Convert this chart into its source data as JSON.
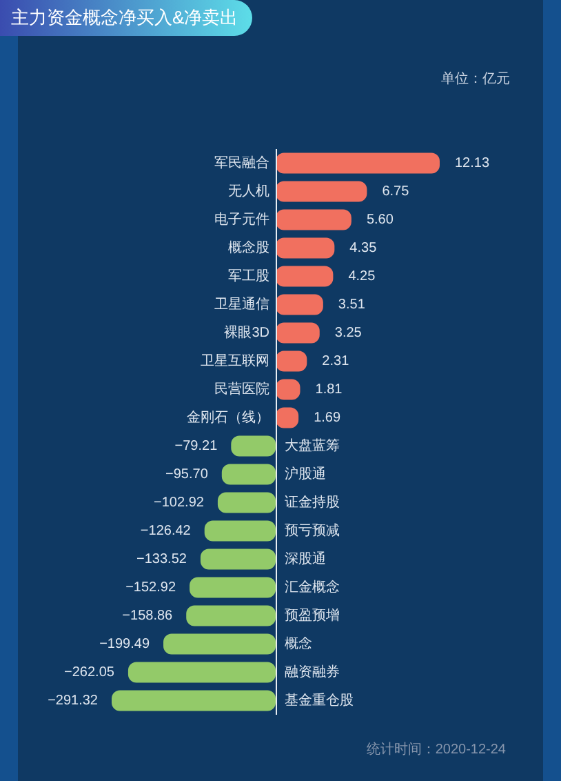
{
  "chart_data": [
    {
      "type": "bar",
      "orientation": "horizontal",
      "title": "主力资金概念净买入&净卖出",
      "annotations": [
        "单位：亿元"
      ],
      "categories": [
        "军民融合",
        "无人机",
        "电子元件",
        "概念股",
        "军工股",
        "卫星通信",
        "裸眼3D",
        "卫星互联网",
        "民营医院",
        "金刚石（线）"
      ],
      "series": [
        {
          "color": "#f1705f",
          "values": [
            12.13,
            6.75,
            5.6,
            4.35,
            4.25,
            3.51,
            3.25,
            2.31,
            1.81,
            1.69
          ],
          "value_labels": [
            "12.13",
            "6.75",
            "5.60",
            "4.35",
            "4.25",
            "3.51",
            "3.25",
            "2.31",
            "1.81",
            "1.69"
          ]
        }
      ],
      "tick_labels": "y"
    },
    {
      "type": "bar",
      "orientation": "horizontal",
      "annotations": [
        "统计时间：2020-12-24"
      ],
      "categories": [
        "大盘蓝筹",
        "沪股通",
        "证金持股",
        "预亏预减",
        "深股通",
        "汇金概念",
        "预盈预增",
        "概念",
        "融资融券",
        "基金重仓股"
      ],
      "series": [
        {
          "color": "#93ca69",
          "values": [
            -79.21,
            -95.7,
            -102.92,
            -126.42,
            -133.52,
            -152.92,
            -158.86,
            -199.49,
            -262.05,
            -291.32
          ],
          "value_labels": [
            "−79.21",
            "−95.70",
            "−102.92",
            "−126.42",
            "−133.52",
            "−152.92",
            "−158.86",
            "−199.49",
            "−262.05",
            "−291.32"
          ]
        }
      ],
      "tick_labels": "y"
    }
  ]
}
